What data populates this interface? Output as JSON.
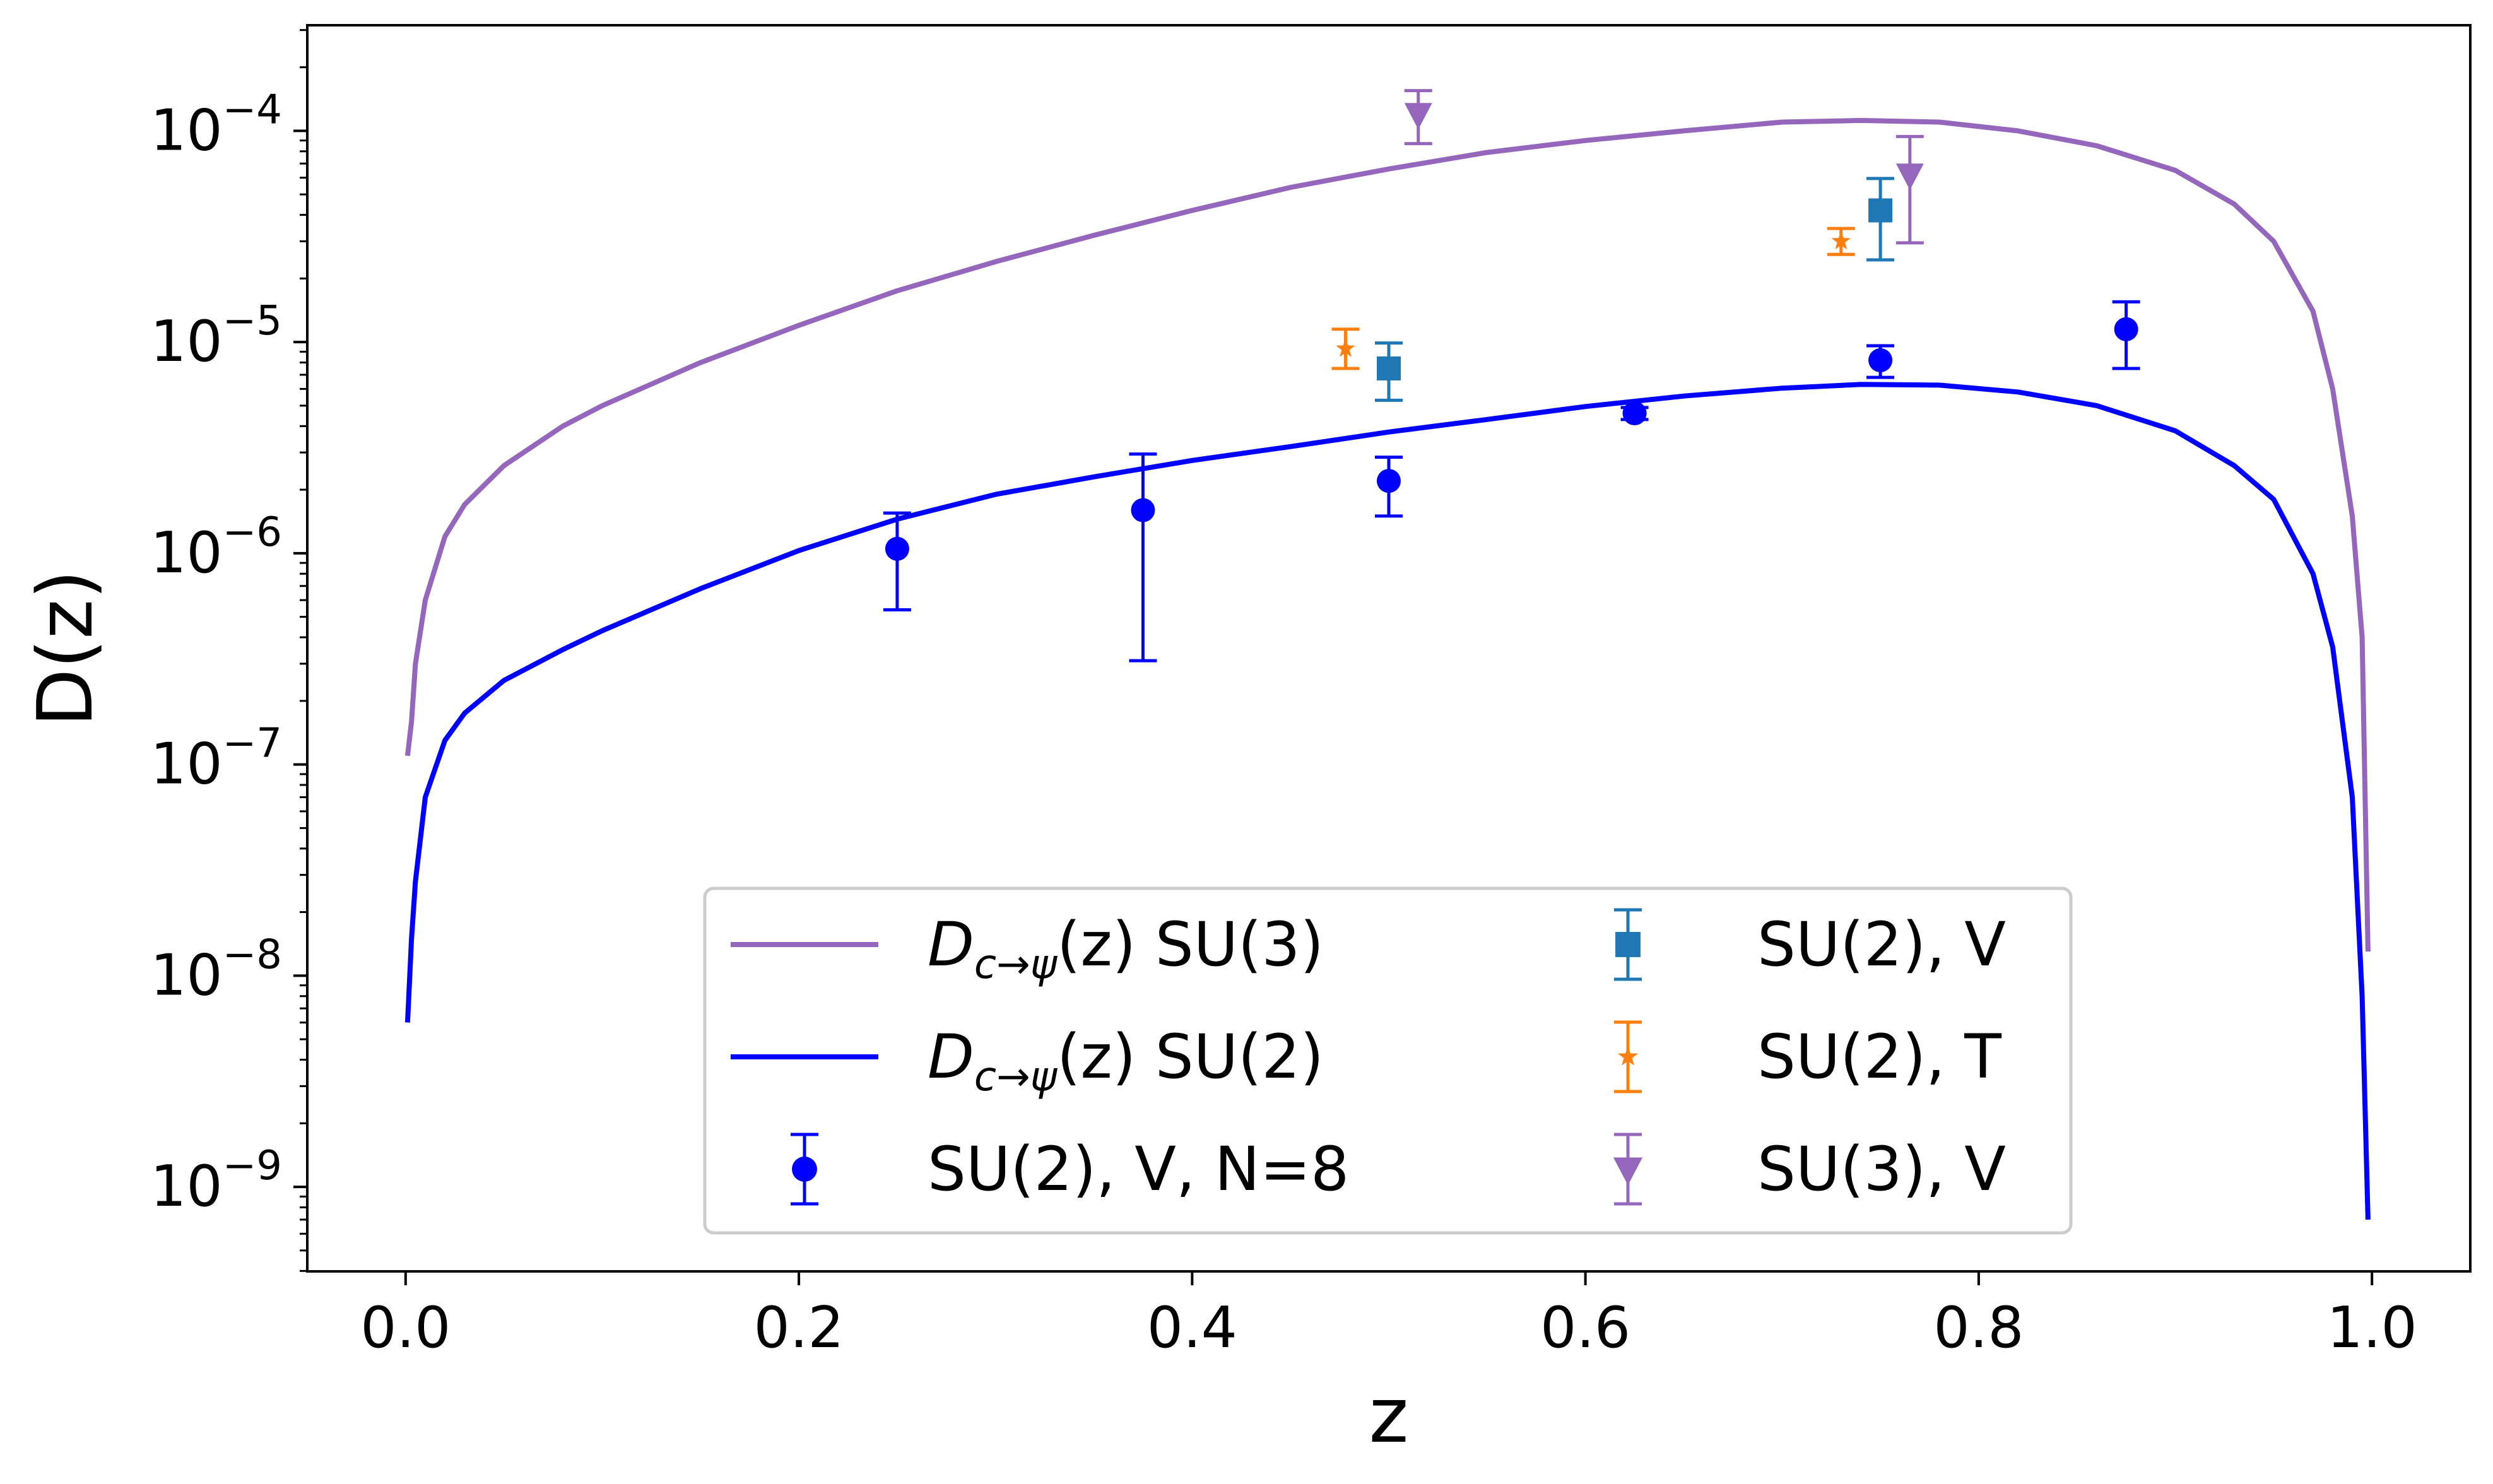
{
  "chart_data": {
    "type": "line+errorbar",
    "title": "",
    "xlabel": "z",
    "ylabel": "D(z)",
    "xscale": "linear",
    "yscale": "log",
    "xlim": [
      -0.05,
      1.05
    ],
    "ylim_log10": [
      -9.4,
      -3.5
    ],
    "x_ticks": [
      0.0,
      0.2,
      0.4,
      0.6,
      0.8,
      1.0
    ],
    "x_tick_labels": [
      "0.0",
      "0.2",
      "0.4",
      "0.6",
      "0.8",
      "1.0"
    ],
    "y_ticks": [
      {
        "exp": -4,
        "base": "10",
        "sup": "−4"
      },
      {
        "exp": -5,
        "base": "10",
        "sup": "−5"
      },
      {
        "exp": -6,
        "base": "10",
        "sup": "−6"
      },
      {
        "exp": -7,
        "base": "10",
        "sup": "−7"
      },
      {
        "exp": -8,
        "base": "10",
        "sup": "−8"
      },
      {
        "exp": -9,
        "base": "10",
        "sup": "−9"
      }
    ],
    "legend_position": "lower center",
    "curves": [
      {
        "name": "D_{c→ψ}(z) SU(3)",
        "label_base": "D",
        "label_sub": "c→ψ",
        "label_rest": "(z) SU(3)",
        "color": "#9467bd",
        "points": [
          [
            0.001,
            1.1e-07
          ],
          [
            0.003,
            1.6e-07
          ],
          [
            0.005,
            3e-07
          ],
          [
            0.01,
            6e-07
          ],
          [
            0.02,
            1.2e-06
          ],
          [
            0.03,
            1.7e-06
          ],
          [
            0.05,
            2.6e-06
          ],
          [
            0.08,
            4e-06
          ],
          [
            0.1,
            5e-06
          ],
          [
            0.15,
            8e-06
          ],
          [
            0.2,
            1.2e-05
          ],
          [
            0.25,
            1.75e-05
          ],
          [
            0.3,
            2.4e-05
          ],
          [
            0.35,
            3.2e-05
          ],
          [
            0.4,
            4.2e-05
          ],
          [
            0.45,
            5.4e-05
          ],
          [
            0.5,
            6.6e-05
          ],
          [
            0.55,
            7.9e-05
          ],
          [
            0.6,
            9e-05
          ],
          [
            0.65,
            0.0001
          ],
          [
            0.7,
            0.00011
          ],
          [
            0.74,
            0.000112
          ],
          [
            0.78,
            0.00011
          ],
          [
            0.82,
            0.0001
          ],
          [
            0.86,
            8.5e-05
          ],
          [
            0.9,
            6.5e-05
          ],
          [
            0.93,
            4.5e-05
          ],
          [
            0.95,
            3e-05
          ],
          [
            0.97,
            1.4e-05
          ],
          [
            0.98,
            6e-06
          ],
          [
            0.99,
            1.5e-06
          ],
          [
            0.995,
            4e-07
          ],
          [
            0.998,
            1.3e-08
          ]
        ]
      },
      {
        "name": "D_{c→ψ}(z) SU(2)",
        "label_base": "D",
        "label_sub": "c→ψ",
        "label_rest": "(z) SU(2)",
        "color": "#0000ff",
        "points": [
          [
            0.001,
            6e-09
          ],
          [
            0.003,
            1.5e-08
          ],
          [
            0.005,
            2.8e-08
          ],
          [
            0.01,
            7e-08
          ],
          [
            0.02,
            1.3e-07
          ],
          [
            0.03,
            1.75e-07
          ],
          [
            0.05,
            2.5e-07
          ],
          [
            0.08,
            3.5e-07
          ],
          [
            0.1,
            4.3e-07
          ],
          [
            0.15,
            6.8e-07
          ],
          [
            0.2,
            1.03e-06
          ],
          [
            0.25,
            1.45e-06
          ],
          [
            0.3,
            1.9e-06
          ],
          [
            0.35,
            2.3e-06
          ],
          [
            0.4,
            2.75e-06
          ],
          [
            0.45,
            3.2e-06
          ],
          [
            0.5,
            3.75e-06
          ],
          [
            0.55,
            4.3e-06
          ],
          [
            0.6,
            4.95e-06
          ],
          [
            0.65,
            5.55e-06
          ],
          [
            0.7,
            6.05e-06
          ],
          [
            0.74,
            6.3e-06
          ],
          [
            0.78,
            6.25e-06
          ],
          [
            0.82,
            5.8e-06
          ],
          [
            0.86,
            5e-06
          ],
          [
            0.9,
            3.8e-06
          ],
          [
            0.93,
            2.6e-06
          ],
          [
            0.95,
            1.8e-06
          ],
          [
            0.97,
            8e-07
          ],
          [
            0.98,
            3.6e-07
          ],
          [
            0.99,
            7e-08
          ],
          [
            0.995,
            8e-09
          ],
          [
            0.998,
            7e-10
          ]
        ]
      }
    ],
    "errorbar_series": [
      {
        "name": "SU(2), V, N=8",
        "color": "#0000ff",
        "marker": "circle",
        "points": [
          {
            "x": 0.25,
            "y": 1.05e-06,
            "ylo": 5.4e-07,
            "yhi": 1.55e-06
          },
          {
            "x": 0.375,
            "y": 1.6e-06,
            "ylo": 3.1e-07,
            "yhi": 2.95e-06
          },
          {
            "x": 0.5,
            "y": 2.2e-06,
            "ylo": 1.5e-06,
            "yhi": 2.85e-06
          },
          {
            "x": 0.625,
            "y": 4.6e-06,
            "ylo": 4.3e-06,
            "yhi": 4.9e-06
          },
          {
            "x": 0.75,
            "y": 8.2e-06,
            "ylo": 6.8e-06,
            "yhi": 9.6e-06
          },
          {
            "x": 0.875,
            "y": 1.15e-05,
            "ylo": 7.5e-06,
            "yhi": 1.55e-05
          }
        ]
      },
      {
        "name": "SU(2), V",
        "color": "#1f77b4",
        "marker": "square",
        "points": [
          {
            "x": 0.5,
            "y": 7.5e-06,
            "ylo": 5.3e-06,
            "yhi": 9.9e-06
          },
          {
            "x": 0.75,
            "y": 4.2e-05,
            "ylo": 2.45e-05,
            "yhi": 5.95e-05
          }
        ]
      },
      {
        "name": "SU(2), T",
        "color": "#ff7f0e",
        "marker": "star",
        "points": [
          {
            "x": 0.478,
            "y": 9.3e-06,
            "ylo": 7.5e-06,
            "yhi": 1.15e-05
          },
          {
            "x": 0.73,
            "y": 3e-05,
            "ylo": 2.6e-05,
            "yhi": 3.45e-05
          }
        ]
      },
      {
        "name": "SU(3), V",
        "color": "#9467bd",
        "marker": "triangle-down",
        "points": [
          {
            "x": 0.515,
            "y": 0.00012,
            "ylo": 8.7e-05,
            "yhi": 0.000155
          },
          {
            "x": 0.765,
            "y": 6.2e-05,
            "ylo": 2.95e-05,
            "yhi": 9.4e-05
          }
        ]
      }
    ]
  }
}
